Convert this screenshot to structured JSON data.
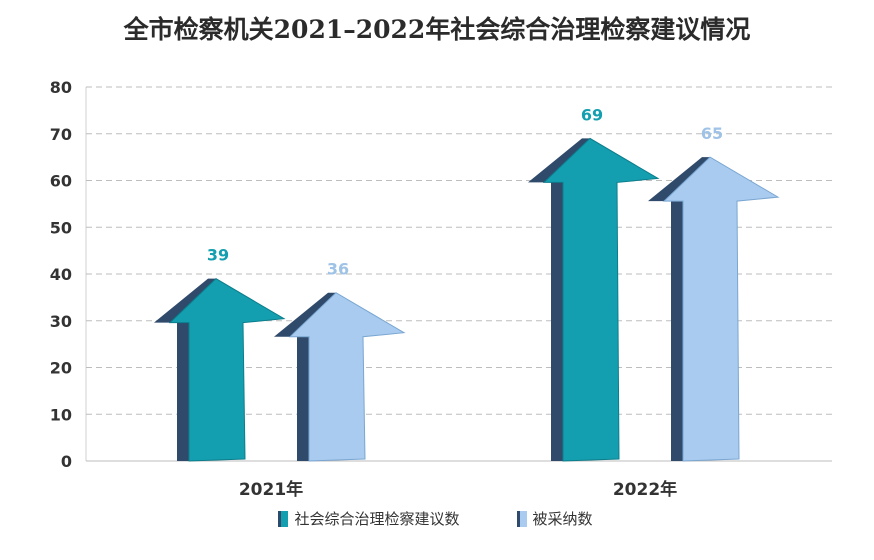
{
  "chart_data": {
    "type": "bar",
    "title": "全市检察机关2021–2022年社会综合治理检察建议情况",
    "categories": [
      "2021年",
      "2022年"
    ],
    "series": [
      {
        "name": "社会综合治理检察建议数",
        "values": [
          39,
          69
        ],
        "color": "#139fb0"
      },
      {
        "name": "被采纳数",
        "values": [
          36,
          65
        ],
        "color": "#a8cbef"
      }
    ],
    "ylim": [
      0,
      80
    ],
    "yticks": [
      0,
      10,
      20,
      30,
      40,
      50,
      60,
      70,
      80
    ],
    "grid": true,
    "legend_position": "bottom",
    "label_colors": [
      "#139fb0",
      "#9fc3e6"
    ],
    "shadow_color": "#2f4a6b"
  }
}
